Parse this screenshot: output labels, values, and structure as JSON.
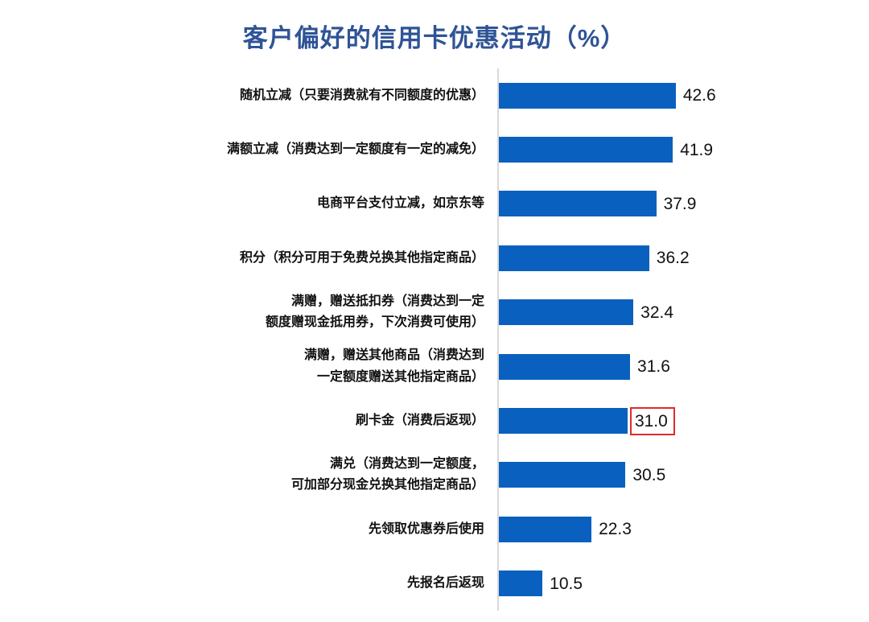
{
  "title": "客户偏好的信用卡优惠活动（%）",
  "chart_data": {
    "type": "bar",
    "orientation": "horizontal",
    "title": "客户偏好的信用卡优惠活动（%）",
    "categories": [
      "随机立减（只要消费就有不同额度的优惠）",
      "满额立减（消费达到一定额度有一定的减免）",
      "电商平台支付立减，如京东等",
      "积分（积分可用于免费兑换其他指定商品）",
      "满赠，赠送抵扣券（消费达到一定\n额度赠现金抵用券，下次消费可使用）",
      "满赠，赠送其他商品（消费达到\n一定额度赠送其他指定商品）",
      "刷卡金（消费后返现）",
      "满兑（消费达到一定额度，\n可加部分现金兑换其他指定商品）",
      "先领取优惠券后使用",
      "先报名后返现"
    ],
    "values": [
      42.6,
      41.9,
      37.9,
      36.2,
      32.4,
      31.6,
      31.0,
      30.5,
      22.3,
      10.5
    ],
    "value_labels": [
      "42.6",
      "41.9",
      "37.9",
      "36.2",
      "32.4",
      "31.6",
      "31.0",
      "30.5",
      "22.3",
      "10.5"
    ],
    "highlighted_index": 6,
    "highlighted_value": "31.0",
    "xlabel": "",
    "ylabel": "",
    "xlim": [
      0,
      45
    ],
    "grid": false,
    "legend": "none",
    "bar_color": "#0A60BE",
    "title_color": "#2F5496",
    "highlight_box_color": "#DF2B2B",
    "axis_line_color": "#D9D9D9",
    "text_color": "#111111"
  }
}
